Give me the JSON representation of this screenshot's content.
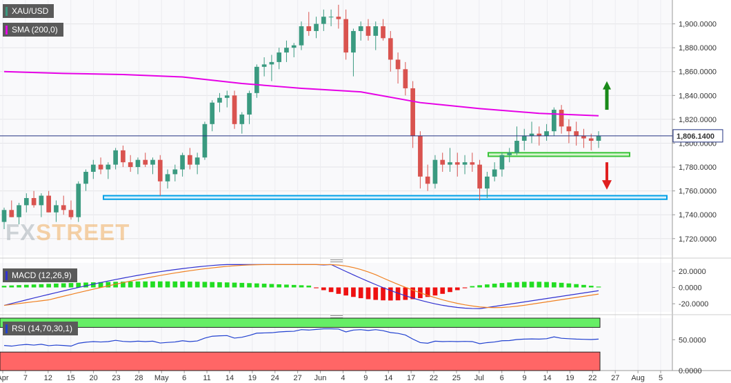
{
  "legend": {
    "symbol": "XAU/USD",
    "sma": "SMA (200,0)",
    "macd": "MACD (12,26,9)",
    "rsi": "RSI (14,70,30,1)"
  },
  "watermark": {
    "fx": "FX",
    "street": "STREET"
  },
  "price_tag": "1,806.1400",
  "colors": {
    "bull": "#3a9a80",
    "bear": "#d9534f",
    "sma": "#e600e6",
    "support": "#00a0e6",
    "resistance_zone": "#39c439",
    "arrow_up": "#1a8a1a",
    "arrow_down": "#e02020",
    "macd_line": "#3030d0",
    "signal_line": "#f08020",
    "hist_pos": "#22dd22",
    "hist_neg": "#ee1111",
    "rsi_line": "#2040d0",
    "overbought": "#66ee66",
    "oversold": "#ff6666"
  },
  "chart_data": {
    "type": "candlestick",
    "price_axis": {
      "ticks": [
        "1,900.0000",
        "1,880.0000",
        "1,860.0000",
        "1,840.0000",
        "1,820.0000",
        "1,800.0000",
        "1,780.0000",
        "1,760.0000",
        "1,740.0000",
        "1,720.0000"
      ],
      "values": [
        1900,
        1880,
        1860,
        1840,
        1820,
        1800,
        1780,
        1760,
        1740,
        1720
      ],
      "range": [
        1706,
        1920
      ]
    },
    "x_ticks": [
      "Apr",
      "7",
      "12",
      "15",
      "20",
      "23",
      "28",
      "May",
      "6",
      "11",
      "14",
      "19",
      "24",
      "27",
      "Jun",
      "4",
      "9",
      "14",
      "17",
      "22",
      "25",
      "Jul",
      "6",
      "9",
      "14",
      "19",
      "22",
      "27",
      "Aug",
      "5"
    ],
    "last_price": 1806.14,
    "candles": [
      [
        1734,
        1746,
        1728,
        1744
      ],
      [
        1744,
        1752,
        1738,
        1738
      ],
      [
        1738,
        1750,
        1732,
        1748
      ],
      [
        1748,
        1758,
        1742,
        1754
      ],
      [
        1754,
        1760,
        1746,
        1748
      ],
      [
        1748,
        1758,
        1738,
        1756
      ],
      [
        1756,
        1760,
        1742,
        1742
      ],
      [
        1742,
        1752,
        1734,
        1748
      ],
      [
        1748,
        1756,
        1740,
        1744
      ],
      [
        1744,
        1752,
        1736,
        1738
      ],
      [
        1738,
        1768,
        1734,
        1766
      ],
      [
        1766,
        1778,
        1760,
        1776
      ],
      [
        1776,
        1786,
        1770,
        1782
      ],
      [
        1782,
        1788,
        1774,
        1778
      ],
      [
        1778,
        1784,
        1770,
        1782
      ],
      [
        1782,
        1796,
        1778,
        1794
      ],
      [
        1794,
        1798,
        1780,
        1784
      ],
      [
        1784,
        1790,
        1776,
        1780
      ],
      [
        1780,
        1788,
        1774,
        1786
      ],
      [
        1786,
        1792,
        1780,
        1782
      ],
      [
        1782,
        1788,
        1774,
        1786
      ],
      [
        1786,
        1790,
        1756,
        1768
      ],
      [
        1768,
        1778,
        1762,
        1774
      ],
      [
        1774,
        1782,
        1768,
        1778
      ],
      [
        1778,
        1792,
        1772,
        1790
      ],
      [
        1790,
        1796,
        1778,
        1782
      ],
      [
        1782,
        1792,
        1774,
        1788
      ],
      [
        1788,
        1818,
        1786,
        1816
      ],
      [
        1816,
        1836,
        1810,
        1834
      ],
      [
        1834,
        1842,
        1826,
        1838
      ],
      [
        1838,
        1844,
        1830,
        1840
      ],
      [
        1840,
        1844,
        1812,
        1816
      ],
      [
        1816,
        1826,
        1808,
        1824
      ],
      [
        1824,
        1844,
        1816,
        1842
      ],
      [
        1842,
        1866,
        1838,
        1864
      ],
      [
        1864,
        1872,
        1856,
        1866
      ],
      [
        1866,
        1874,
        1852,
        1868
      ],
      [
        1868,
        1880,
        1862,
        1876
      ],
      [
        1876,
        1886,
        1868,
        1880
      ],
      [
        1880,
        1884,
        1872,
        1882
      ],
      [
        1882,
        1902,
        1878,
        1898
      ],
      [
        1898,
        1910,
        1890,
        1894
      ],
      [
        1894,
        1906,
        1888,
        1900
      ],
      [
        1900,
        1912,
        1894,
        1906
      ],
      [
        1906,
        1912,
        1898,
        1906
      ],
      [
        1906,
        1916,
        1896,
        1904
      ],
      [
        1904,
        1912,
        1870,
        1876
      ],
      [
        1876,
        1896,
        1856,
        1894
      ],
      [
        1894,
        1902,
        1886,
        1898
      ],
      [
        1898,
        1904,
        1886,
        1890
      ],
      [
        1890,
        1902,
        1878,
        1898
      ],
      [
        1898,
        1904,
        1886,
        1888
      ],
      [
        1888,
        1894,
        1860,
        1870
      ],
      [
        1870,
        1876,
        1850,
        1862
      ],
      [
        1862,
        1868,
        1840,
        1846
      ],
      [
        1846,
        1852,
        1796,
        1806
      ],
      [
        1806,
        1810,
        1762,
        1772
      ],
      [
        1772,
        1782,
        1760,
        1766
      ],
      [
        1766,
        1790,
        1762,
        1786
      ],
      [
        1786,
        1792,
        1776,
        1782
      ],
      [
        1782,
        1796,
        1776,
        1784
      ],
      [
        1784,
        1792,
        1772,
        1782
      ],
      [
        1782,
        1790,
        1774,
        1784
      ],
      [
        1784,
        1792,
        1776,
        1782
      ],
      [
        1782,
        1786,
        1752,
        1762
      ],
      [
        1762,
        1776,
        1754,
        1772
      ],
      [
        1772,
        1784,
        1768,
        1778
      ],
      [
        1778,
        1792,
        1772,
        1790
      ],
      [
        1790,
        1796,
        1784,
        1792
      ],
      [
        1792,
        1814,
        1790,
        1802
      ],
      [
        1802,
        1812,
        1794,
        1806
      ],
      [
        1806,
        1818,
        1800,
        1808
      ],
      [
        1808,
        1814,
        1798,
        1806
      ],
      [
        1806,
        1816,
        1802,
        1810
      ],
      [
        1810,
        1830,
        1806,
        1828
      ],
      [
        1828,
        1832,
        1808,
        1814
      ],
      [
        1814,
        1820,
        1800,
        1810
      ],
      [
        1810,
        1818,
        1798,
        1806
      ],
      [
        1806,
        1812,
        1796,
        1804
      ],
      [
        1804,
        1808,
        1794,
        1802
      ],
      [
        1802,
        1810,
        1796,
        1806
      ]
    ],
    "sma200": [
      [
        0,
        1860
      ],
      [
        0.1,
        1858.5
      ],
      [
        0.2,
        1857.5
      ],
      [
        0.3,
        1855.5
      ],
      [
        0.4,
        1850
      ],
      [
        0.5,
        1846
      ],
      [
        0.6,
        1843
      ],
      [
        0.7,
        1834
      ],
      [
        0.8,
        1829
      ],
      [
        0.9,
        1825
      ],
      [
        1,
        1823
      ]
    ],
    "support_zone": {
      "from": 1753,
      "to": 1756,
      "label": ""
    },
    "resistance_zone": {
      "from": 1789,
      "to": 1792,
      "label": ""
    },
    "macd": {
      "range": [
        -30,
        30
      ],
      "ticks": [
        "20.0000",
        "0.0000",
        "-20.0000"
      ],
      "tick_values": [
        20,
        0,
        -20
      ]
    },
    "rsi": {
      "range": [
        0,
        85
      ],
      "ticks": [
        "50.0000",
        "0.0000"
      ],
      "tick_values": [
        50,
        0
      ],
      "overbought": 70,
      "oversold": 30
    }
  }
}
